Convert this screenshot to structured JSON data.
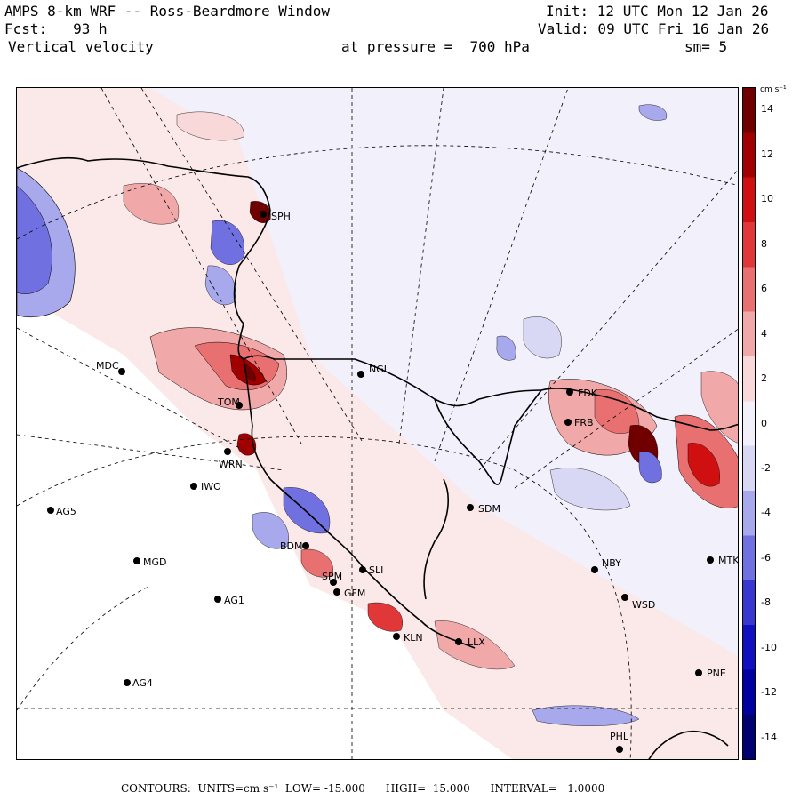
{
  "header": {
    "title": "AMPS 8-km WRF -- Ross-Beardmore Window",
    "forecast": "Fcst:   93 h",
    "field": "Vertical velocity",
    "init": "Init: 12 UTC Mon 12 Jan 26",
    "valid": "Valid: 09 UTC Fri 16 Jan 26",
    "pressure": "at pressure =  700 hPa",
    "smoothing": "sm= 5"
  },
  "colorbar": {
    "units_label": "cm s⁻¹",
    "ticks": [
      "14",
      "12",
      "10",
      "8",
      "6",
      "4",
      "2",
      "0",
      "-2",
      "-4",
      "-6",
      "-8",
      "-10",
      "-12",
      "-14"
    ],
    "range": [
      -15,
      15
    ],
    "colors_positive": [
      "#f8d8d8",
      "#f0a8a8",
      "#e87070",
      "#e03838",
      "#d01010",
      "#a00000",
      "#700000"
    ],
    "colors_negative": [
      "#d8d8f4",
      "#a8a8ec",
      "#7070e0",
      "#3838d0",
      "#1010c0",
      "#0000a0",
      "#000070"
    ],
    "neutral": "#f1f0fb"
  },
  "footer": {
    "text": "CONTOURS:  UNITS=cm s⁻¹  LOW= -15.000      HIGH=  15.000      INTERVAL=   1.0000"
  },
  "stations": [
    {
      "id": "MDC"
    },
    {
      "id": "NGL"
    },
    {
      "id": "FDK"
    },
    {
      "id": "FRB"
    },
    {
      "id": "IWO"
    },
    {
      "id": "WRN"
    },
    {
      "id": "AG5"
    },
    {
      "id": "SDM"
    },
    {
      "id": "BDM"
    },
    {
      "id": "MGD"
    },
    {
      "id": "NBY"
    },
    {
      "id": "MTK"
    },
    {
      "id": "SPM"
    },
    {
      "id": "GFM"
    },
    {
      "id": "SLI"
    },
    {
      "id": "AG1"
    },
    {
      "id": "WSD"
    },
    {
      "id": "KLN"
    },
    {
      "id": "LLX"
    },
    {
      "id": "AG4"
    },
    {
      "id": "PNE"
    },
    {
      "id": "PHL"
    },
    {
      "id": "TOM"
    },
    {
      "id": "SPH"
    }
  ]
}
